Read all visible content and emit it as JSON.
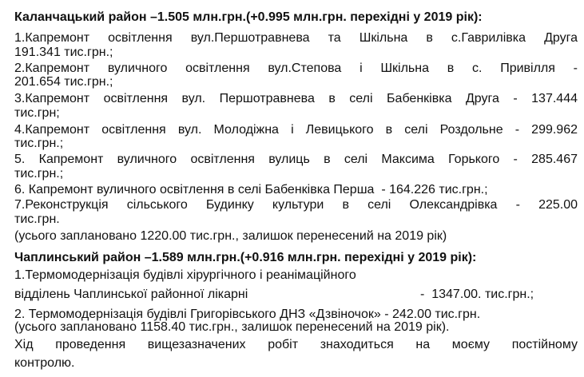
{
  "section1": {
    "heading": "Каланчацький район –1.505 млн.грн.(+0.995 млн.грн. перехідні у 2019 рік):",
    "lines": [
      "1.Капремонт освітлення вул.Першотравнева та Шкільна в с.Гаврилівка Друга",
      "191.341 тис.грн.;",
      "2.Капремонт вуличного освітлення вул.Степова і Шкільна в с. Привілля -",
      "201.654 тис.грн.;",
      "3.Капремонт освітлення вул. Першотравнева в селі Бабенківка Друга - 137.444",
      "тис.грн;",
      "4.Капремонт освітлення вул. Молодіжна і Левицького в селі Роздольне - 299.962",
      "тис.грн.;",
      "5. Капремонт вуличного освітлення вулиць в селі Максима Горького - 285.467",
      "тис.грн.;",
      "6. Капремонт вуличного освітлення в селі Бабенківка Перша  - 164.226 тис.грн.;",
      "7.Реконструкція сільського Будинку культури в селі Олександрівка - 225.00",
      "тис.грн.",
      "(усього заплановано 1220.00 тис.грн., залишок перенесений на 2019 рік)"
    ]
  },
  "section2": {
    "heading": "Чаплинський район –1.589 млн.грн.(+0.916 млн.грн. перехідні у 2019 рік):",
    "lines": [
      "1.Термомодернізація будівлі хірургічного і реанімаційного",
      "відділень Чаплинської районної лікарні",
      "-  1347.00. тис.грн.;",
      "2. Термомодернізація будівлі Григорівського ДНЗ «Дзвіночок» - 242.00 тис.грн.",
      "(усього заплановано 1158.40 тис.грн., залишок перенесений на 2019 рік).",
      "Хід проведення вищезазначених робіт знаходиться на моєму постійному",
      "контролю."
    ]
  }
}
